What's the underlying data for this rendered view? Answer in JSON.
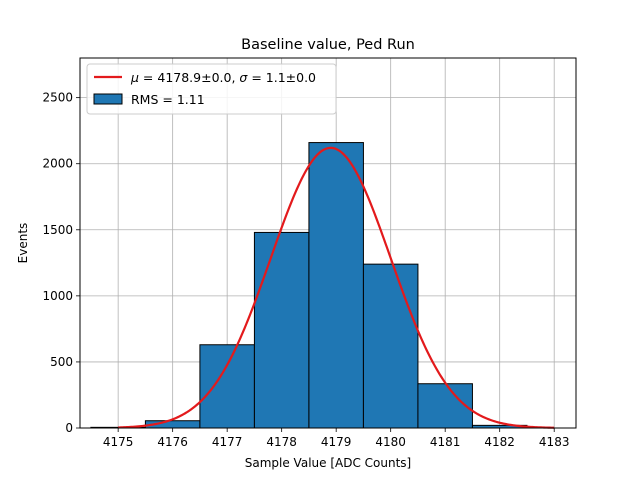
{
  "chart_data": {
    "type": "bar",
    "title": "Baseline value, Ped Run",
    "xlabel": "Sample Value [ADC Counts]",
    "ylabel": "Events",
    "xlim": [
      4174.3,
      4183.4
    ],
    "ylim": [
      0,
      2800
    ],
    "xticks": [
      4175,
      4176,
      4177,
      4178,
      4179,
      4180,
      4181,
      4182,
      4183
    ],
    "yticks": [
      0,
      500,
      1000,
      1500,
      2000,
      2500
    ],
    "grid": true,
    "legend_position": "top-left",
    "bins": [
      {
        "left": 4174.5,
        "right": 4175.5,
        "count": 5
      },
      {
        "left": 4175.5,
        "right": 4176.5,
        "count": 55
      },
      {
        "left": 4176.5,
        "right": 4177.5,
        "count": 630
      },
      {
        "left": 4177.5,
        "right": 4178.5,
        "count": 1480
      },
      {
        "left": 4178.5,
        "right": 4179.5,
        "count": 2160
      },
      {
        "left": 4179.5,
        "right": 4180.5,
        "count": 1240
      },
      {
        "left": 4180.5,
        "right": 4181.5,
        "count": 335
      },
      {
        "left": 4181.5,
        "right": 4182.5,
        "count": 20
      }
    ],
    "bar_color": "#1f77b4",
    "fit": {
      "type": "gaussian",
      "mu": 4178.9,
      "sigma": 1.1,
      "amplitude": 2120,
      "x_range": [
        4175,
        4183
      ],
      "color": "#e31a1c"
    },
    "legend": [
      {
        "kind": "line",
        "mu_text": "4178.9±0.0",
        "sigma_text": "1.1±0.0",
        "color": "#e31a1c"
      },
      {
        "kind": "patch",
        "text": "RMS = 1.11",
        "color": "#1f77b4"
      }
    ]
  }
}
